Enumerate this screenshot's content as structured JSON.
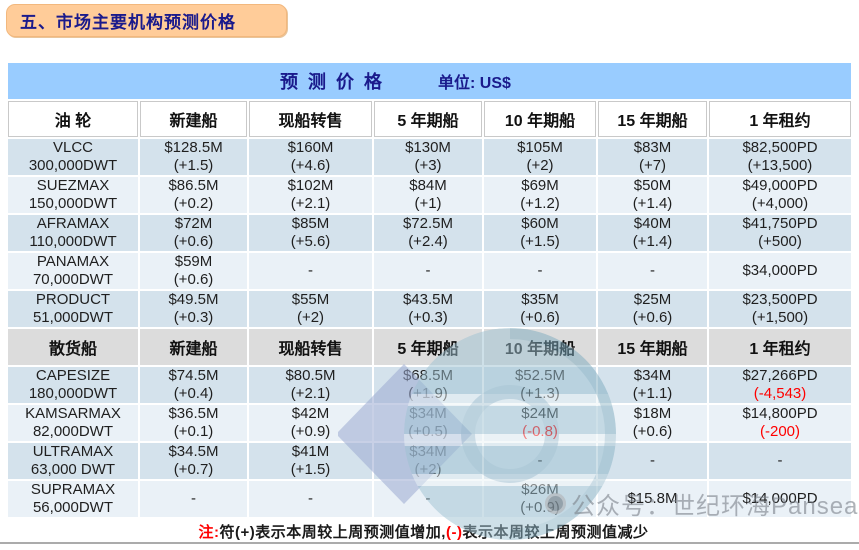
{
  "colors": {
    "header_blue": "#99ccff",
    "title_peach": "#ffcc99",
    "row_dark": "#d4e2ec",
    "row_light": "#eaf1f7",
    "section_gray": "#dcdcdc",
    "negative_red": "#ff0000",
    "navy": "#1a1a8c"
  },
  "title": "五、市场主要机构预测价格",
  "table": {
    "blue_header": {
      "title": "预  测  价  格",
      "unit": "单位: US$"
    },
    "sections": [
      {
        "style": "white",
        "columns": [
          "油 轮",
          "新建船",
          "现船转售",
          "5 年期船",
          "10 年期船",
          "15 年期船",
          "1 年租约"
        ],
        "rows": [
          {
            "name": "VLCC",
            "dwt": "300,000DWT",
            "cells": [
              {
                "v": "$128.5M",
                "d": "(+1.5)"
              },
              {
                "v": "$160M",
                "d": "(+4.6)"
              },
              {
                "v": "$130M",
                "d": "(+3)"
              },
              {
                "v": "$105M",
                "d": "(+2)"
              },
              {
                "v": "$83M",
                "d": "(+7)"
              },
              {
                "v": "$82,500PD",
                "d": "(+13,500)"
              }
            ]
          },
          {
            "name": "SUEZMAX",
            "dwt": "150,000DWT",
            "cells": [
              {
                "v": "$86.5M",
                "d": "(+0.2)"
              },
              {
                "v": "$102M",
                "d": "(+2.1)"
              },
              {
                "v": "$84M",
                "d": "(+1)"
              },
              {
                "v": "$69M",
                "d": "(+1.2)"
              },
              {
                "v": "$50M",
                "d": "(+1.4)"
              },
              {
                "v": "$49,000PD",
                "d": "(+4,000)"
              }
            ]
          },
          {
            "name": "AFRAMAX",
            "dwt": "110,000DWT",
            "cells": [
              {
                "v": "$72M",
                "d": "(+0.6)"
              },
              {
                "v": "$85M",
                "d": "(+5.6)"
              },
              {
                "v": "$72.5M",
                "d": "(+2.4)"
              },
              {
                "v": "$60M",
                "d": "(+1.5)"
              },
              {
                "v": "$40M",
                "d": "(+1.4)"
              },
              {
                "v": "$41,750PD",
                "d": "(+500)"
              }
            ]
          },
          {
            "name": "PANAMAX",
            "dwt": "70,000DWT",
            "cells": [
              {
                "v": "$59M",
                "d": "(+0.6)"
              },
              {
                "v": "-"
              },
              {
                "v": "-"
              },
              {
                "v": "-"
              },
              {
                "v": "-"
              },
              {
                "v": "$34,000PD"
              }
            ]
          },
          {
            "name": "PRODUCT",
            "dwt": "51,000DWT",
            "cells": [
              {
                "v": "$49.5M",
                "d": "(+0.3)"
              },
              {
                "v": "$55M",
                "d": "(+2)"
              },
              {
                "v": "$43.5M",
                "d": "(+0.3)"
              },
              {
                "v": "$35M",
                "d": "(+0.6)"
              },
              {
                "v": "$25M",
                "d": "(+0.6)"
              },
              {
                "v": "$23,500PD",
                "d": "(+1,500)"
              }
            ]
          }
        ]
      },
      {
        "style": "gray",
        "columns": [
          "散货船",
          "新建船",
          "现船转售",
          "5 年期船",
          "10 年期船",
          "15 年期船",
          "1 年租约"
        ],
        "rows": [
          {
            "name": "CAPESIZE",
            "dwt": "180,000DWT",
            "cells": [
              {
                "v": "$74.5M",
                "d": "(+0.4)"
              },
              {
                "v": "$80.5M",
                "d": "(+2.1)"
              },
              {
                "v": "$68.5M",
                "d": "(+1.9)"
              },
              {
                "v": "$52.5M",
                "d": "(+1.3)"
              },
              {
                "v": "$34M",
                "d": "(+1.1)"
              },
              {
                "v": "$27,266PD",
                "d": "(-4,543)",
                "neg": true
              }
            ]
          },
          {
            "name": "KAMSARMAX",
            "dwt": "82,000DWT",
            "cells": [
              {
                "v": "$36.5M",
                "d": "(+0.1)"
              },
              {
                "v": "$42M",
                "d": "(+0.9)"
              },
              {
                "v": "$34M",
                "d": "(+0.5)"
              },
              {
                "v": "$24M",
                "d": "(-0.8)",
                "neg": true
              },
              {
                "v": "$18M",
                "d": "(+0.6)"
              },
              {
                "v": "$14,800PD",
                "d": "(-200)",
                "neg": true
              }
            ]
          },
          {
            "name": "ULTRAMAX",
            "dwt": "63,000 DWT",
            "cells": [
              {
                "v": "$34.5M",
                "d": "(+0.7)"
              },
              {
                "v": "$41M",
                "d": "(+1.5)"
              },
              {
                "v": "$34M",
                "d": "(+2)"
              },
              {
                "v": "-"
              },
              {
                "v": "-"
              },
              {
                "v": "-"
              }
            ]
          },
          {
            "name": "SUPRAMAX",
            "dwt": "56,000DWT",
            "cells": [
              {
                "v": "-"
              },
              {
                "v": "-"
              },
              {
                "v": "-"
              },
              {
                "v": "$26M",
                "d": "(+0.9)"
              },
              {
                "v": "$15.8M"
              },
              {
                "v": "$14,000PD"
              }
            ]
          }
        ]
      }
    ]
  },
  "note": {
    "parts": [
      {
        "text": "注:",
        "red": true
      },
      {
        "text": "符(+)表示本周较上周预测值增加,",
        "red": false
      },
      {
        "text": "(-)",
        "red": true
      },
      {
        "text": "表示本周较上周预测值减少",
        "red": false
      }
    ]
  },
  "watermark": {
    "text": "公众号：世纪环海Pansea"
  }
}
